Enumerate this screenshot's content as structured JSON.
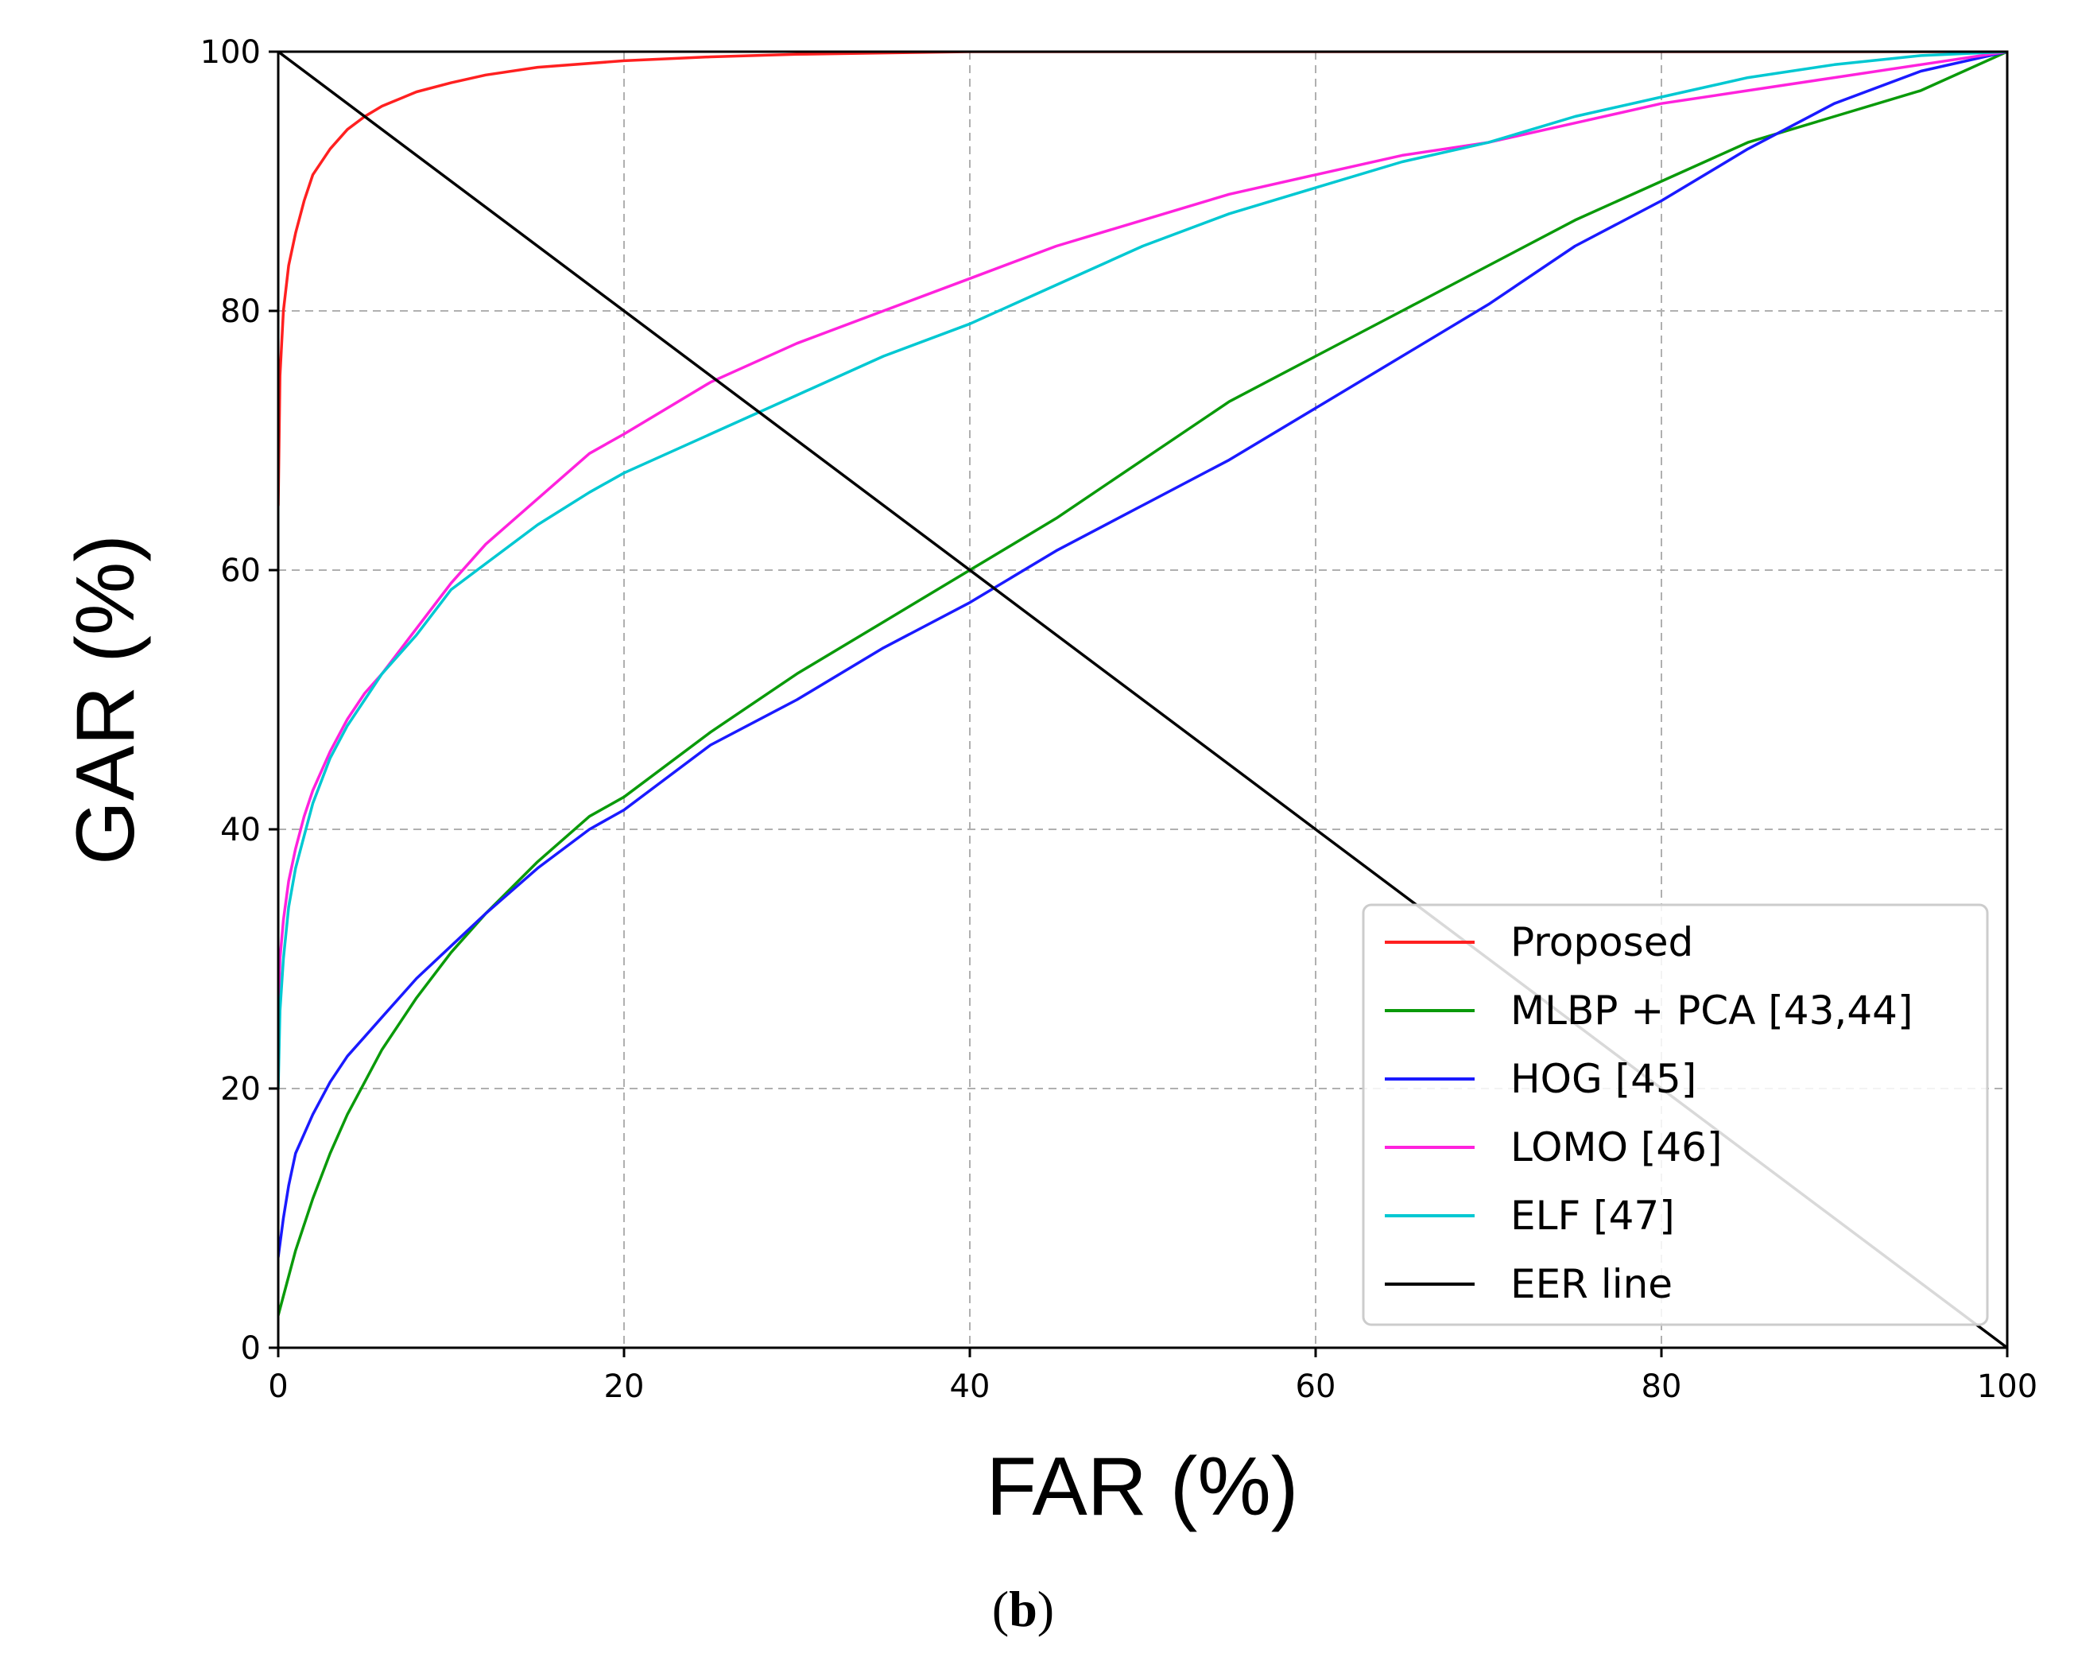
{
  "chart_data": {
    "type": "line",
    "title": "",
    "xlabel": "FAR (%)",
    "ylabel": "GAR (%)",
    "xlim": [
      0,
      100
    ],
    "ylim": [
      0,
      100
    ],
    "xticks": [
      "0",
      "20",
      "40",
      "60",
      "80",
      "100"
    ],
    "yticks": [
      "0",
      "20",
      "40",
      "60",
      "80",
      "100"
    ],
    "grid": true,
    "legend_position": "lower-right",
    "caption_open": "(",
    "caption_letter": "b",
    "caption_close": ")",
    "series": [
      {
        "name": "Proposed",
        "color": "#ff2020",
        "x": [
          0,
          0.1,
          0.3,
          0.6,
          1,
          1.5,
          2,
          3,
          4,
          5,
          6,
          8,
          10,
          12,
          15,
          20,
          25,
          30,
          35,
          40,
          50,
          60,
          70,
          80,
          90,
          100
        ],
        "y": [
          65,
          75,
          80,
          83.5,
          86,
          88.5,
          90.5,
          92.5,
          94,
          95,
          95.8,
          96.9,
          97.6,
          98.2,
          98.8,
          99.3,
          99.6,
          99.8,
          99.9,
          100,
          100,
          100,
          100,
          100,
          100,
          100
        ]
      },
      {
        "name": "MLBP + PCA [43,44]",
        "color": "#0a9a0a",
        "x": [
          0,
          0.5,
          1,
          2,
          3,
          4,
          5,
          6,
          8,
          10,
          12,
          15,
          18,
          20,
          25,
          30,
          35,
          40,
          45,
          50,
          55,
          60,
          65,
          70,
          75,
          80,
          85,
          90,
          95,
          100
        ],
        "y": [
          2.5,
          5,
          7.5,
          11.5,
          15,
          18,
          20.5,
          23,
          27,
          30.5,
          33.5,
          37.5,
          41,
          42.5,
          47.5,
          52,
          56,
          60,
          64,
          68.5,
          73,
          76.5,
          80,
          83.5,
          87,
          90,
          93,
          95,
          97,
          100
        ]
      },
      {
        "name": "HOG [45]",
        "color": "#1a1aff",
        "x": [
          0,
          0.3,
          0.6,
          1,
          2,
          3,
          4,
          5,
          6,
          8,
          10,
          12,
          15,
          18,
          20,
          25,
          30,
          35,
          40,
          45,
          50,
          55,
          60,
          65,
          70,
          75,
          80,
          85,
          90,
          95,
          100
        ],
        "y": [
          7,
          10,
          12.5,
          15,
          18,
          20.5,
          22.5,
          24,
          25.5,
          28.5,
          31,
          33.5,
          37,
          40,
          41.5,
          46.5,
          50,
          54,
          57.5,
          61.5,
          65,
          68.5,
          72.5,
          76.5,
          80.5,
          85,
          88.5,
          92.5,
          96,
          98.5,
          100
        ]
      },
      {
        "name": "LOMO [46]",
        "color": "#ff22dd",
        "x": [
          0,
          0.1,
          0.3,
          0.6,
          1,
          1.5,
          2,
          3,
          4,
          5,
          6,
          8,
          10,
          12,
          15,
          18,
          20,
          25,
          30,
          35,
          40,
          45,
          50,
          55,
          60,
          65,
          70,
          75,
          80,
          85,
          90,
          95,
          100
        ],
        "y": [
          25,
          30,
          33,
          36,
          38.5,
          41,
          43,
          46,
          48.5,
          50.5,
          52,
          55.5,
          59,
          62,
          65.5,
          69,
          70.5,
          74.5,
          77.5,
          80,
          82.5,
          85,
          87,
          89,
          90.5,
          92,
          93,
          94.5,
          96,
          97,
          98,
          99,
          100
        ]
      },
      {
        "name": "ELF [47]",
        "color": "#00c8d2",
        "x": [
          0,
          0.1,
          0.3,
          0.6,
          1,
          1.5,
          2,
          3,
          4,
          5,
          6,
          8,
          10,
          12,
          15,
          18,
          20,
          25,
          30,
          35,
          40,
          45,
          50,
          55,
          60,
          65,
          70,
          75,
          80,
          85,
          90,
          95,
          100
        ],
        "y": [
          20,
          26,
          30,
          34,
          37,
          39.5,
          42,
          45.5,
          48,
          50,
          52,
          55,
          58.5,
          60.5,
          63.5,
          66,
          67.5,
          70.5,
          73.5,
          76.5,
          79,
          82,
          85,
          87.5,
          89.5,
          91.5,
          93,
          95,
          96.5,
          98,
          99,
          99.7,
          100
        ]
      },
      {
        "name": "EER line",
        "color": "#000000",
        "x": [
          0,
          100
        ],
        "y": [
          100,
          0
        ]
      }
    ]
  }
}
